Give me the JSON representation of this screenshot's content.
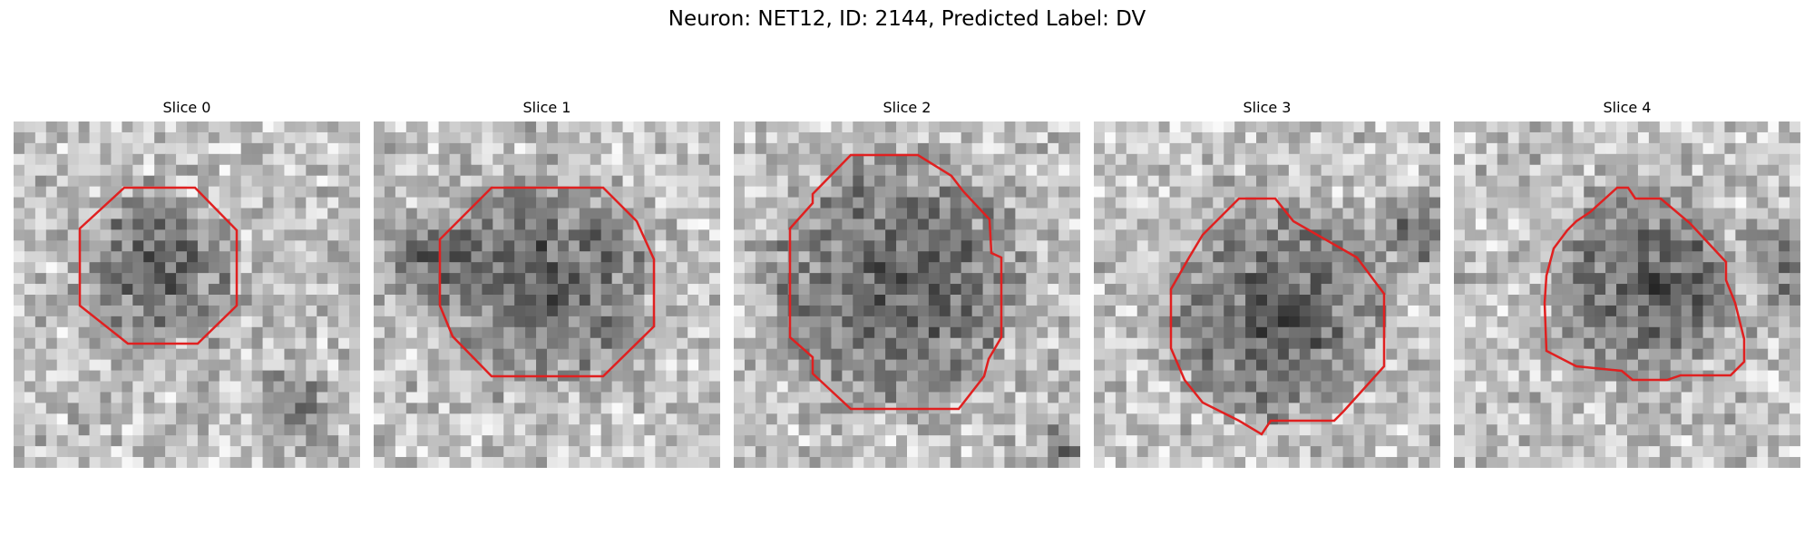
{
  "figure": {
    "title": "Neuron: NET12, ID: 2144, Predicted Label: DV"
  },
  "panels": [
    {
      "title": "Slice 0"
    },
    {
      "title": "Slice 1"
    },
    {
      "title": "Slice 2"
    },
    {
      "title": "Slice 3"
    },
    {
      "title": "Slice 4"
    }
  ],
  "colors": {
    "contour": "#e02020"
  }
}
